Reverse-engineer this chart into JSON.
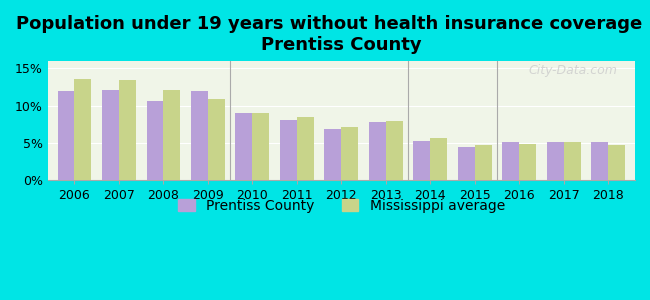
{
  "title": "Population under 19 years without health insurance coverage in\nPrentiss County",
  "years": [
    2006,
    2007,
    2008,
    2009,
    2010,
    2011,
    2012,
    2013,
    2014,
    2015,
    2016,
    2017,
    2018
  ],
  "prentiss": [
    11.9,
    12.1,
    10.6,
    11.9,
    9.0,
    8.1,
    6.9,
    7.8,
    5.2,
    4.4,
    5.1,
    5.1,
    5.1
  ],
  "ms_avg": [
    13.6,
    13.4,
    12.1,
    10.9,
    9.0,
    8.5,
    7.2,
    8.0,
    5.6,
    4.7,
    4.8,
    5.1,
    4.7
  ],
  "bar_color_prentiss": "#b8a0d8",
  "bar_color_ms": "#c8d48a",
  "background_outer": "#00e5e5",
  "background_plot": "#f0f5e8",
  "ylim": [
    0,
    16
  ],
  "yticks": [
    0,
    5,
    10,
    15
  ],
  "ytick_labels": [
    "0%",
    "5%",
    "10%",
    "15%"
  ],
  "legend_label_prentiss": "Prentiss County",
  "legend_label_ms": "Mississippi average",
  "watermark": "City-Data.com",
  "bar_width": 0.38,
  "title_fontsize": 13,
  "tick_fontsize": 9,
  "legend_fontsize": 10
}
